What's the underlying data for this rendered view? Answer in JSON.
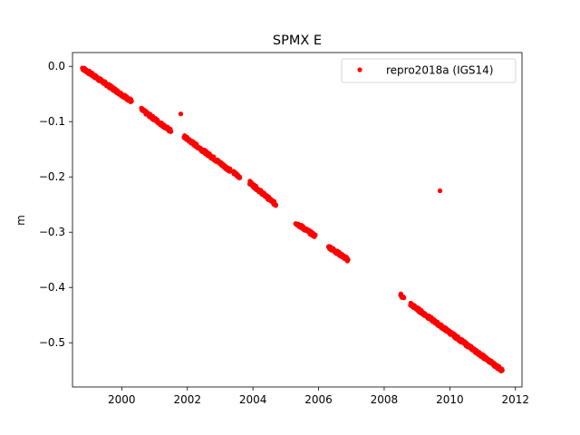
{
  "chart_data": {
    "type": "scatter",
    "title": "SPMX E",
    "xlabel": "",
    "ylabel": "m",
    "xlim": [
      1998.5,
      2012.2
    ],
    "ylim": [
      -0.58,
      0.025
    ],
    "xticks": [
      2000,
      2002,
      2004,
      2006,
      2008,
      2010,
      2012
    ],
    "xtick_labels": [
      "2000",
      "2002",
      "2004",
      "2006",
      "2008",
      "2010",
      "2012"
    ],
    "yticks": [
      0.0,
      -0.1,
      -0.2,
      -0.3,
      -0.4,
      -0.5
    ],
    "ytick_labels": [
      "0.0",
      "−0.1",
      "−0.2",
      "−0.3",
      "−0.4",
      "−0.5"
    ],
    "grid": false,
    "legend": {
      "position": "top-right",
      "entries": [
        "repro2018a (IGS14)"
      ]
    },
    "series": [
      {
        "name": "repro2018a (IGS14)",
        "color": "#ff0000",
        "marker": "circle",
        "segments": [
          {
            "x": [
              1998.8,
              2000.3
            ],
            "y": [
              -0.003,
              -0.063
            ]
          },
          {
            "x": [
              2000.6,
              2001.5
            ],
            "y": [
              -0.078,
              -0.117
            ]
          },
          {
            "x": [
              2001.9,
              2003.3
            ],
            "y": [
              -0.127,
              -0.188
            ]
          },
          {
            "x": [
              2003.4,
              2003.6
            ],
            "y": [
              -0.192,
              -0.2
            ]
          },
          {
            "x": [
              2003.9,
              2004.7
            ],
            "y": [
              -0.21,
              -0.25
            ]
          },
          {
            "x": [
              2005.3,
              2005.9
            ],
            "y": [
              -0.283,
              -0.307
            ]
          },
          {
            "x": [
              2006.3,
              2006.9
            ],
            "y": [
              -0.326,
              -0.35
            ]
          },
          {
            "x": [
              2008.5,
              2008.6
            ],
            "y": [
              -0.413,
              -0.42
            ]
          },
          {
            "x": [
              2008.8,
              2011.6
            ],
            "y": [
              -0.43,
              -0.55
            ]
          }
        ],
        "outliers": [
          {
            "x": 2001.8,
            "y": -0.086
          },
          {
            "x": 2009.7,
            "y": -0.225
          }
        ]
      }
    ]
  }
}
